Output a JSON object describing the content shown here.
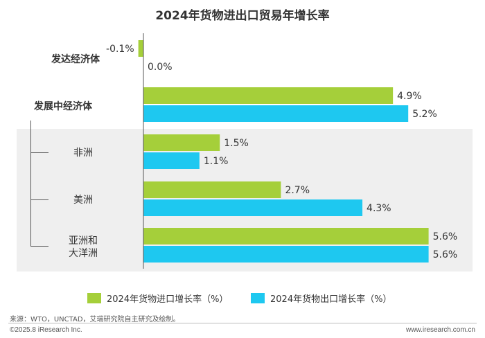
{
  "chart_data": {
    "type": "bar",
    "orientation": "horizontal",
    "title": "2024年货物进出口贸易年增长率",
    "categories": [
      "发达经济体",
      "发展中经济体",
      "非洲",
      "美洲",
      "亚洲和大洋洲"
    ],
    "category_lines": [
      [
        "发达经济体"
      ],
      [
        "发展中经济体"
      ],
      [
        "非洲"
      ],
      [
        "美洲"
      ],
      [
        "亚洲和",
        "大洋洲"
      ]
    ],
    "series": [
      {
        "name": "2024年货物进口增长率（%）",
        "values": [
          -0.1,
          4.9,
          1.5,
          2.7,
          5.6
        ],
        "labels": [
          "-0.1%",
          "4.9%",
          "1.5%",
          "2.7%",
          "5.6%"
        ],
        "color": "#a5cf3a"
      },
      {
        "name": "2024年货物出口增长率（%）",
        "values": [
          0.0,
          5.2,
          1.1,
          4.3,
          5.6
        ],
        "labels": [
          "0.0%",
          "5.2%",
          "1.1%",
          "4.3%",
          "5.6%"
        ],
        "color": "#1ec8f0"
      }
    ],
    "grid": false,
    "legend_position": "bottom"
  },
  "footer": {
    "source": "来源：WTO，UNCTAD，艾瑞研究院自主研究及绘制。",
    "copyright": "©2025.8 iResearch Inc.",
    "website": "www.iresearch.com.cn"
  }
}
